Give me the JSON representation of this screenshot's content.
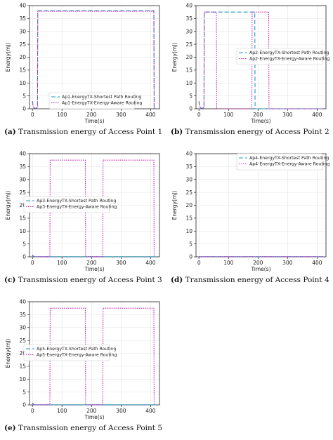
{
  "chart_data": [
    {
      "type": "line",
      "id": "a",
      "caption_label": "(a)",
      "caption_text": "Transmission energy of Access Point 1",
      "xlabel": "Time(s)",
      "ylabel": "Energy(mJ)",
      "xlim": [
        -10,
        430
      ],
      "ylim": [
        0,
        40
      ],
      "xticks": [
        0,
        100,
        200,
        300,
        400
      ],
      "yticks": [
        0,
        5,
        10,
        15,
        20,
        25,
        30,
        35,
        40
      ],
      "grid": true,
      "legend_position": "lower-center",
      "series": [
        {
          "name": "Ap1-EnergyTX-Shortest Path Routing",
          "color": "#1f9bc4",
          "dash": "6,3",
          "x": [
            0,
            2,
            4,
            6,
            10,
            14,
            17,
            18,
            410,
            411,
            412
          ],
          "y": [
            3,
            1.5,
            0.8,
            0.3,
            0.2,
            0.3,
            0.5,
            38,
            38,
            38,
            0
          ]
        },
        {
          "name": "Ap1-EnergyTX-Energy-Aware Routing",
          "color": "#c71eb8",
          "dash": "1.5,1.5",
          "x": [
            0,
            2,
            4,
            6,
            10,
            14,
            17,
            18,
            410,
            411,
            412
          ],
          "y": [
            2.5,
            1.2,
            0.6,
            0.2,
            0.2,
            0.3,
            0.5,
            37.8,
            37.8,
            37.8,
            0
          ]
        }
      ]
    },
    {
      "type": "line",
      "id": "b",
      "caption_label": "(b)",
      "caption_text": "Transmission energy of Access Point 2",
      "xlabel": "Time(s)",
      "ylabel": "Energy(mJ)",
      "xlim": [
        -10,
        430
      ],
      "ylim": [
        0,
        40
      ],
      "xticks": [
        0,
        100,
        200,
        300,
        400
      ],
      "yticks": [
        0,
        5,
        10,
        15,
        20,
        25,
        30,
        35,
        40
      ],
      "grid": true,
      "legend_position": "center-right",
      "series": [
        {
          "name": "Ap2-EnergyTX-Shortest Path Routing",
          "color": "#1f9bc4",
          "dash": "6,3",
          "x": [
            0,
            2,
            4,
            6,
            10,
            14,
            17,
            18,
            188,
            189,
            190,
            420
          ],
          "y": [
            3,
            1.5,
            0.8,
            0.3,
            0.2,
            0.3,
            0.5,
            37.5,
            37.5,
            37.5,
            0,
            0
          ]
        },
        {
          "name": "Ap2-EnergyTX-Energy-Aware Routing",
          "color": "#c71eb8",
          "dash": "1.5,1.5",
          "x": [
            0,
            2,
            4,
            6,
            10,
            14,
            17,
            18,
            58,
            59,
            60,
            178,
            179,
            180,
            235,
            236,
            237,
            420
          ],
          "y": [
            2.5,
            1.2,
            0.6,
            0.2,
            0.2,
            0.3,
            0.5,
            37.5,
            37.5,
            37.5,
            0,
            0,
            0,
            37.5,
            37.5,
            37.5,
            0,
            0
          ]
        }
      ]
    },
    {
      "type": "line",
      "id": "c",
      "caption_label": "(c)",
      "caption_text": "Transmission energy of Access Point 3",
      "xlabel": "Time(s)",
      "ylabel": "Energy(mJ)",
      "xlim": [
        -10,
        430
      ],
      "ylim": [
        0,
        40
      ],
      "xticks": [
        0,
        100,
        200,
        300,
        400
      ],
      "yticks": [
        0,
        5,
        10,
        15,
        20,
        25,
        30,
        35,
        40
      ],
      "grid": true,
      "legend_position": "center-left",
      "series": [
        {
          "name": "Ap3-EnergyTX-Shortest Path Routing",
          "color": "#1f9bc4",
          "dash": "6,3",
          "x": [
            0,
            2,
            4,
            6,
            420
          ],
          "y": [
            0.8,
            0.4,
            0.2,
            0.05,
            0.05
          ]
        },
        {
          "name": "Ap3-EnergyTX-Energy-Aware Routing",
          "color": "#c71eb8",
          "dash": "1.5,1.5",
          "x": [
            0,
            2,
            4,
            6,
            58,
            59,
            60,
            178,
            179,
            180,
            237,
            238,
            239,
            410,
            411,
            412
          ],
          "y": [
            0.6,
            0.3,
            0.1,
            0.05,
            0.05,
            0.05,
            37.5,
            37.5,
            37.5,
            0.05,
            0.05,
            0.05,
            37.5,
            37.5,
            37.5,
            0.05
          ]
        }
      ]
    },
    {
      "type": "line",
      "id": "d",
      "caption_label": "(d)",
      "caption_text": "Transmission energy of Access Point 4",
      "xlabel": "Time(s)",
      "ylabel": "Energy(mJ)",
      "xlim": [
        -10,
        430
      ],
      "ylim": [
        0,
        40
      ],
      "xticks": [
        0,
        100,
        200,
        300,
        400
      ],
      "yticks": [
        0,
        5,
        10,
        15,
        20,
        25,
        30,
        35,
        40
      ],
      "grid": true,
      "legend_position": "upper-right",
      "series": [
        {
          "name": "Ap4-EnergyTX-Shortest Path Routing",
          "color": "#1f9bc4",
          "dash": "6,3",
          "x": [
            0,
            420
          ],
          "y": [
            0.05,
            0.05
          ]
        },
        {
          "name": "Ap4-EnergyTX-Energy-Aware Routing",
          "color": "#c71eb8",
          "dash": "1.5,1.5",
          "x": [
            0,
            420
          ],
          "y": [
            0.05,
            0.05
          ]
        }
      ]
    },
    {
      "type": "line",
      "id": "e",
      "caption_label": "(e)",
      "caption_text": "Transmission energy of Access Point 5",
      "xlabel": "Time(s)",
      "ylabel": "Energy(mJ)",
      "xlim": [
        -10,
        430
      ],
      "ylim": [
        0,
        40
      ],
      "xticks": [
        0,
        100,
        200,
        300,
        400
      ],
      "yticks": [
        0,
        5,
        10,
        15,
        20,
        25,
        30,
        35,
        40
      ],
      "grid": true,
      "legend_position": "center-left",
      "series": [
        {
          "name": "Ap5-EnergyTX-Shortest Path Routing",
          "color": "#1f9bc4",
          "dash": "6,3",
          "x": [
            0,
            2,
            4,
            6,
            420
          ],
          "y": [
            0.8,
            0.4,
            0.2,
            0.05,
            0.05
          ]
        },
        {
          "name": "Ap5-EnergyTX-Energy-Aware Routing",
          "color": "#c71eb8",
          "dash": "1.5,1.5",
          "x": [
            0,
            2,
            4,
            6,
            58,
            59,
            60,
            178,
            179,
            180,
            237,
            238,
            239,
            410,
            411,
            412
          ],
          "y": [
            0.6,
            0.3,
            0.1,
            0.05,
            0.05,
            0.05,
            37.5,
            37.5,
            37.5,
            0.05,
            0.05,
            0.05,
            37.5,
            37.5,
            37.5,
            0.05
          ]
        }
      ]
    }
  ]
}
